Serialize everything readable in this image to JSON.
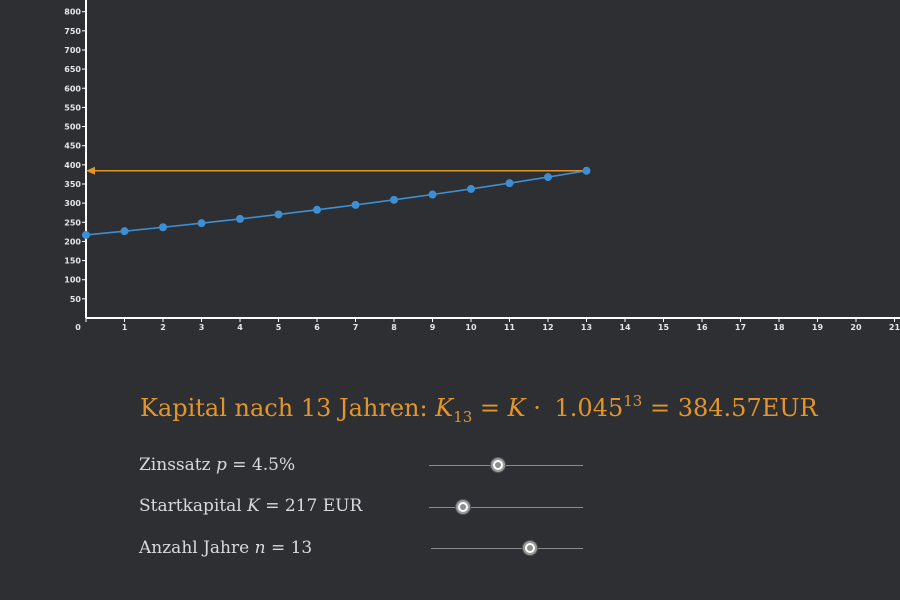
{
  "colors": {
    "background": "#2d2f33",
    "series": "#3d8fd4",
    "accent": "#e3952c",
    "axis": "#ffffff",
    "text": "#dadada"
  },
  "chart_data": {
    "type": "line",
    "xlim": [
      0,
      21
    ],
    "ylim": [
      0,
      820
    ],
    "x_ticks": [
      "0",
      "1",
      "2",
      "3",
      "4",
      "5",
      "6",
      "7",
      "8",
      "9",
      "10",
      "11",
      "12",
      "13",
      "14",
      "15",
      "16",
      "17",
      "18",
      "19",
      "20",
      "21"
    ],
    "y_ticks": [
      "50",
      "100",
      "150",
      "200",
      "250",
      "300",
      "350",
      "400",
      "450",
      "500",
      "550",
      "600",
      "650",
      "700",
      "750",
      "800"
    ],
    "series": [
      {
        "x": [
          0,
          1,
          2,
          3,
          4,
          5,
          6,
          7,
          8,
          9,
          10,
          11,
          12,
          13
        ],
        "values": [
          217,
          226.77,
          236.97,
          247.64,
          258.78,
          270.43,
          282.59,
          295.31,
          308.6,
          322.49,
          337.0,
          352.16,
          368.01,
          384.57
        ]
      }
    ],
    "annotation": {
      "type": "arrow",
      "from_x": 13,
      "to_x": 0,
      "y": 384.57
    }
  },
  "formula": {
    "prefix": "Kapital nach 13 Jahren:",
    "var": "K",
    "sub": "13",
    "eq1": "=",
    "var2": "K",
    "dot": "·",
    "base": "1.045",
    "exp": "13",
    "eq2": "=",
    "result": "384.57",
    "unit": "EUR"
  },
  "controls": [
    {
      "label": "Zinssatz",
      "var": "p",
      "value_text": "= 4.5%",
      "level": 0.45
    },
    {
      "label": "Startkapital",
      "var": "K",
      "value_text": "= 217 EUR",
      "level": 0.22
    },
    {
      "label": "Anzahl Jahre",
      "var": "n",
      "value_text": "= 13",
      "level": 0.65
    }
  ]
}
